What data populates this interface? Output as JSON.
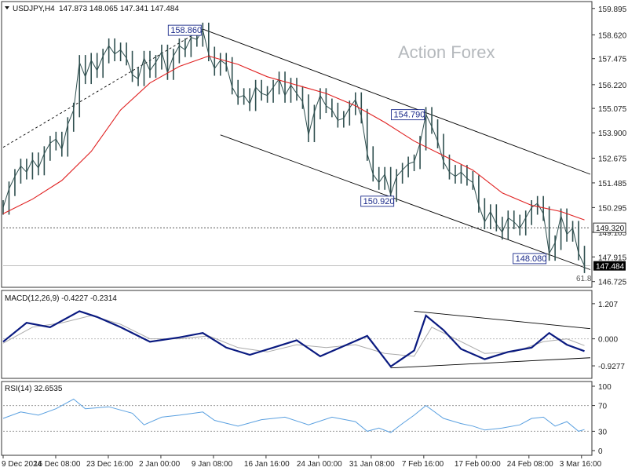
{
  "header": {
    "symbol_tf": "USDJPY,H4",
    "ohlc": "147.873 148.065 147.341 147.484",
    "watermark": "Action Forex"
  },
  "macd_header": "MACD(12,26,9) -0.4227 -0.2314",
  "rsi_header": "RSI(14) 32.6535",
  "colors": {
    "price": "#2f4f4f",
    "ma": "#e02020",
    "macd": "#0a1a80",
    "macd_signal": "#aaaaaa",
    "rsi": "#5aa0e0",
    "annot_border": "#1a2a8a",
    "current_tag_bg": "#000000",
    "trendlines": "#000000"
  },
  "chart_data": [
    {
      "type": "line",
      "panel": "price",
      "x_tick_labels": [
        "9 Dec 2024",
        "16 Dec 08:00",
        "23 Dec 16:00",
        "2 Jan 00:00",
        "9 Jan 08:00",
        "16 Jan 16:00",
        "24 Jan 00:00",
        "31 Jan 08:00",
        "7 Feb 16:00",
        "17 Feb 00:00",
        "24 Feb 08:00",
        "3 Mar 16:00"
      ],
      "y_tick_labels": [
        "159.895",
        "158.620",
        "157.475",
        "156.220",
        "155.075",
        "153.900",
        "152.675",
        "151.485",
        "150.295",
        "149.105",
        "147.915",
        "146.725"
      ],
      "ylim": [
        146.6,
        160.0
      ],
      "xlim": [
        0,
        100
      ],
      "series": [
        {
          "values": [
            [
              0,
              150.3
            ],
            [
              1,
              151.2
            ],
            [
              2,
              151.8
            ],
            [
              3,
              152.3
            ],
            [
              4,
              152.0
            ],
            [
              5,
              152.6
            ],
            [
              6,
              152.2
            ],
            [
              7,
              152.9
            ],
            [
              8,
              153.4
            ],
            [
              9,
              153.6
            ],
            [
              10,
              153.1
            ],
            [
              11,
              154.3
            ],
            [
              12,
              155.0
            ],
            [
              13,
              157.3
            ],
            [
              14,
              156.6
            ],
            [
              15,
              157.4
            ],
            [
              16,
              156.9
            ],
            [
              17,
              157.6
            ],
            [
              18,
              158.1
            ],
            [
              19,
              157.7
            ],
            [
              20,
              157.9
            ],
            [
              21,
              157.5
            ],
            [
              22,
              156.7
            ],
            [
              23,
              156.5
            ],
            [
              24,
              157.5
            ],
            [
              25,
              156.9
            ],
            [
              26,
              157.3
            ],
            [
              27,
              157.8
            ],
            [
              28,
              156.8
            ],
            [
              29,
              157.6
            ],
            [
              30,
              158.1
            ],
            [
              31,
              157.9
            ],
            [
              32,
              158.5
            ],
            [
              33,
              158.4
            ],
            [
              34,
              158.86
            ],
            [
              35,
              157.7
            ],
            [
              36,
              157.0
            ],
            [
              37,
              157.4
            ],
            [
              38,
              157.2
            ],
            [
              39,
              156.1
            ],
            [
              40,
              155.6
            ],
            [
              41,
              155.7
            ],
            [
              42,
              155.3
            ],
            [
              43,
              156.1
            ],
            [
              44,
              155.8
            ],
            [
              45,
              155.7
            ],
            [
              46,
              156.1
            ],
            [
              47,
              156.5
            ],
            [
              48,
              155.7
            ],
            [
              49,
              156.2
            ],
            [
              50,
              155.8
            ],
            [
              51,
              155.4
            ],
            [
              52,
              153.8
            ],
            [
              53,
              154.9
            ],
            [
              54,
              155.7
            ],
            [
              55,
              155.2
            ],
            [
              56,
              155.0
            ],
            [
              57,
              154.5
            ],
            [
              58,
              154.6
            ],
            [
              59,
              155.1
            ],
            [
              60,
              155.5
            ],
            [
              61,
              154.7
            ],
            [
              62,
              152.9
            ],
            [
              63,
              151.9
            ],
            [
              64,
              151.5
            ],
            [
              65,
              151.9
            ],
            [
              66,
              150.92
            ],
            [
              67,
              151.8
            ],
            [
              68,
              152.1
            ],
            [
              69,
              152.4
            ],
            [
              70,
              152.5
            ],
            [
              71,
              153.4
            ],
            [
              72,
              154.79
            ],
            [
              73,
              154.2
            ],
            [
              74,
              153.5
            ],
            [
              75,
              152.5
            ],
            [
              76,
              152.0
            ],
            [
              77,
              151.8
            ],
            [
              78,
              152.0
            ],
            [
              79,
              151.7
            ],
            [
              80,
              151.5
            ],
            [
              81,
              150.4
            ],
            [
              82,
              149.6
            ],
            [
              83,
              150.1
            ],
            [
              84,
              149.5
            ],
            [
              85,
              149.1
            ],
            [
              86,
              149.8
            ],
            [
              87,
              149.6
            ],
            [
              88,
              149.3
            ],
            [
              89,
              149.8
            ],
            [
              90,
              150.3
            ],
            [
              91,
              150.5
            ],
            [
              92,
              150.0
            ],
            [
              93,
              148.08
            ],
            [
              94,
              148.6
            ],
            [
              95,
              149.9
            ],
            [
              96,
              149.0
            ],
            [
              97,
              149.3
            ],
            [
              98,
              148.1
            ],
            [
              99,
              147.484
            ]
          ],
          "role": "price"
        },
        {
          "values": [
            [
              0,
              150.0
            ],
            [
              5,
              150.7
            ],
            [
              10,
              151.6
            ],
            [
              15,
              153.0
            ],
            [
              20,
              155.0
            ],
            [
              25,
              156.3
            ],
            [
              30,
              157.1
            ],
            [
              35,
              157.6
            ],
            [
              40,
              157.2
            ],
            [
              45,
              156.6
            ],
            [
              50,
              156.2
            ],
            [
              55,
              155.8
            ],
            [
              60,
              155.2
            ],
            [
              65,
              154.4
            ],
            [
              70,
              153.5
            ],
            [
              75,
              152.8
            ],
            [
              80,
              152.1
            ],
            [
              85,
              151.0
            ],
            [
              90,
              150.4
            ],
            [
              95,
              150.1
            ],
            [
              99,
              149.7
            ]
          ],
          "role": "moving_average"
        }
      ],
      "horizontal_levels": [
        149.32,
        147.484
      ],
      "annotations": [
        {
          "text": "158.860",
          "x": 34,
          "y": 158.86
        },
        {
          "text": "154.790",
          "x": 72,
          "y": 154.79
        },
        {
          "text": "150.920",
          "x": 66,
          "y": 150.92
        },
        {
          "text": "148.080",
          "x": 93,
          "y": 148.08
        },
        {
          "text": "149.320",
          "x": 100,
          "y": 149.32
        },
        {
          "text": "147.484",
          "x": 100,
          "y": 147.484
        },
        {
          "text": "61.8",
          "x": 99,
          "y": 146.95
        }
      ],
      "trendlines": [
        {
          "from": [
            34,
            158.9
          ],
          "to": [
            100,
            151.9
          ]
        },
        {
          "from": [
            37,
            153.8
          ],
          "to": [
            100,
            147.3
          ]
        },
        {
          "from": [
            0,
            153.2
          ],
          "to": [
            34,
            158.9
          ]
        }
      ]
    },
    {
      "type": "line",
      "panel": "macd",
      "y_tick_labels": [
        "1.207",
        "0.000",
        "-0.9277"
      ],
      "ylim": [
        -1.25,
        1.5
      ],
      "series": [
        {
          "role": "macd",
          "values": [
            [
              0,
              -0.1
            ],
            [
              4,
              0.55
            ],
            [
              8,
              0.4
            ],
            [
              13,
              0.95
            ],
            [
              16,
              0.75
            ],
            [
              20,
              0.4
            ],
            [
              25,
              -0.1
            ],
            [
              30,
              0.05
            ],
            [
              34,
              0.2
            ],
            [
              38,
              -0.3
            ],
            [
              42,
              -0.55
            ],
            [
              46,
              -0.3
            ],
            [
              50,
              -0.05
            ],
            [
              54,
              -0.6
            ],
            [
              58,
              -0.25
            ],
            [
              62,
              0.1
            ],
            [
              66,
              -0.95
            ],
            [
              70,
              -0.4
            ],
            [
              72,
              0.8
            ],
            [
              75,
              0.3
            ],
            [
              78,
              -0.35
            ],
            [
              82,
              -0.7
            ],
            [
              86,
              -0.45
            ],
            [
              90,
              -0.3
            ],
            [
              93,
              0.2
            ],
            [
              96,
              -0.2
            ],
            [
              99,
              -0.4227
            ]
          ]
        },
        {
          "role": "signal",
          "values": [
            [
              0,
              -0.15
            ],
            [
              5,
              0.4
            ],
            [
              10,
              0.55
            ],
            [
              15,
              0.8
            ],
            [
              20,
              0.5
            ],
            [
              25,
              0.0
            ],
            [
              30,
              0.0
            ],
            [
              35,
              0.1
            ],
            [
              40,
              -0.3
            ],
            [
              45,
              -0.45
            ],
            [
              50,
              -0.2
            ],
            [
              55,
              -0.3
            ],
            [
              60,
              -0.2
            ],
            [
              65,
              -0.5
            ],
            [
              70,
              -0.6
            ],
            [
              73,
              0.4
            ],
            [
              77,
              0.0
            ],
            [
              82,
              -0.5
            ],
            [
              87,
              -0.45
            ],
            [
              92,
              -0.1
            ],
            [
              96,
              0.0
            ],
            [
              99,
              -0.2314
            ]
          ]
        }
      ],
      "trendlines": [
        {
          "from": [
            70,
            0.95
          ],
          "to": [
            100,
            0.35
          ]
        },
        {
          "from": [
            66,
            -1.0
          ],
          "to": [
            100,
            -0.65
          ]
        }
      ]
    },
    {
      "type": "line",
      "panel": "rsi",
      "y_tick_labels": [
        "100",
        "70",
        "30",
        "0"
      ],
      "ylim": [
        0,
        100
      ],
      "levels": [
        70,
        30
      ],
      "series": [
        {
          "role": "rsi",
          "values": [
            [
              0,
              50
            ],
            [
              3,
              60
            ],
            [
              6,
              55
            ],
            [
              9,
              65
            ],
            [
              12,
              80
            ],
            [
              14,
              65
            ],
            [
              18,
              68
            ],
            [
              22,
              58
            ],
            [
              24,
              40
            ],
            [
              27,
              52
            ],
            [
              30,
              55
            ],
            [
              34,
              60
            ],
            [
              36,
              47
            ],
            [
              40,
              38
            ],
            [
              44,
              48
            ],
            [
              48,
              52
            ],
            [
              52,
              40
            ],
            [
              56,
              52
            ],
            [
              60,
              45
            ],
            [
              62,
              30
            ],
            [
              64,
              35
            ],
            [
              66,
              28
            ],
            [
              68,
              42
            ],
            [
              70,
              55
            ],
            [
              72,
              70
            ],
            [
              75,
              50
            ],
            [
              78,
              42
            ],
            [
              80,
              38
            ],
            [
              82,
              32
            ],
            [
              85,
              35
            ],
            [
              88,
              40
            ],
            [
              90,
              50
            ],
            [
              92,
              52
            ],
            [
              94,
              38
            ],
            [
              96,
              45
            ],
            [
              98,
              30
            ],
            [
              99,
              32.65
            ]
          ]
        }
      ]
    }
  ]
}
